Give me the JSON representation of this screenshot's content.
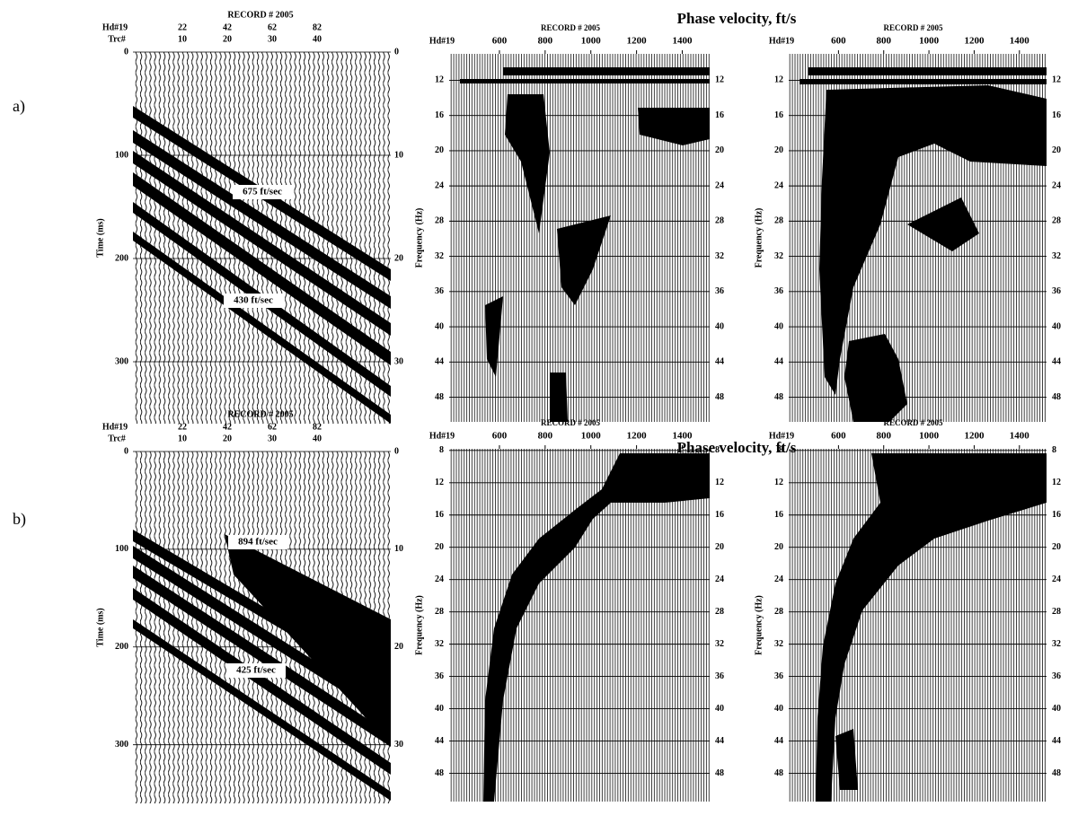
{
  "rows": [
    {
      "label": "a)",
      "record": {
        "title": "RECORD # 2005",
        "hd_label": "Hd#19",
        "trc_label": "Trc#",
        "hd_ticks": [
          22,
          42,
          62,
          82
        ],
        "trc_ticks": [
          10,
          20,
          30,
          40
        ],
        "ylabel": "Time (ms)",
        "ylim": [
          0,
          360
        ],
        "yticks": [
          0,
          100,
          200,
          300
        ],
        "right_ticks": [
          0,
          10,
          20,
          30
        ],
        "annotations": [
          "675 ft/sec",
          "430 ft/sec"
        ]
      },
      "shared_title": "Phase velocity, ft/s",
      "dispersion": [
        {
          "title": "RECORD # 2005",
          "hd_label": "Hd#19",
          "xlim": [
            380,
            1520
          ],
          "xticks": [
            600,
            800,
            1000,
            1200,
            1400
          ],
          "ylabel": "Frequency (Hz)",
          "ylim": [
            9,
            50.8
          ],
          "yticks": [
            12,
            16,
            20,
            24,
            28,
            32,
            36,
            40,
            44,
            48
          ]
        },
        {
          "title": "RECORD # 2005",
          "hd_label": "Hd#19",
          "xlim": [
            380,
            1520
          ],
          "xticks": [
            600,
            800,
            1000,
            1200,
            1400
          ],
          "ylabel": "Frequency (Hz)",
          "ylim": [
            9,
            50.8
          ],
          "yticks": [
            12,
            16,
            20,
            24,
            28,
            32,
            36,
            40,
            44,
            48
          ]
        }
      ]
    },
    {
      "label": "b)",
      "record": {
        "title": "RECORD # 2005",
        "hd_label": "Hd#19",
        "trc_label": "Trc#",
        "hd_ticks": [
          22,
          42,
          62,
          82
        ],
        "trc_ticks": [
          10,
          20,
          30,
          40
        ],
        "ylabel": "Time (ms)",
        "ylim": [
          0,
          360
        ],
        "yticks": [
          0,
          100,
          200,
          300
        ],
        "right_ticks": [
          0,
          10,
          20,
          30
        ],
        "annotations": [
          "894 ft/sec",
          "425 ft/sec"
        ]
      },
      "shared_title": "Phase velocity, ft/s",
      "dispersion": [
        {
          "title": "RECORD # 2005",
          "hd_label": "Hd#19",
          "xlim": [
            380,
            1520
          ],
          "xticks": [
            600,
            800,
            1000,
            1200,
            1400
          ],
          "ylabel": "Frequency (Hz)",
          "ylim": [
            7.8,
            51.5
          ],
          "yticks": [
            8,
            12,
            16,
            20,
            24,
            28,
            32,
            36,
            40,
            44,
            48
          ]
        },
        {
          "title": "RECORD # 2005",
          "hd_label": "Hd#19",
          "xlim": [
            380,
            1520
          ],
          "xticks": [
            600,
            800,
            1000,
            1200,
            1400
          ],
          "ylabel": "Frequency (Hz)",
          "ylim": [
            7.8,
            51.5
          ],
          "yticks": [
            8,
            12,
            16,
            20,
            24,
            28,
            32,
            36,
            40,
            44,
            48
          ]
        }
      ]
    }
  ]
}
